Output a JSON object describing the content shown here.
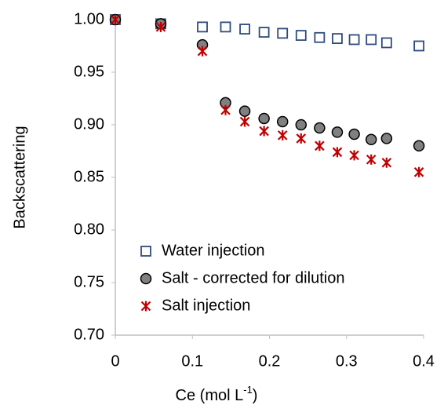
{
  "chart_data": {
    "type": "scatter",
    "xlabel": {
      "text": "Ce (mol L",
      "sup": "-1",
      "end": ")"
    },
    "ylabel": "Backscattering",
    "x": [
      0,
      0.059,
      0.113,
      0.143,
      0.168,
      0.193,
      0.217,
      0.241,
      0.265,
      0.288,
      0.31,
      0.332,
      0.352,
      0.394
    ],
    "series": [
      {
        "name": "Water injection",
        "color": "#2f4b7c",
        "marker": "square",
        "values": [
          1.0,
          0.996,
          0.993,
          0.993,
          0.991,
          0.988,
          0.987,
          0.985,
          0.983,
          0.982,
          0.981,
          0.981,
          0.978,
          0.975
        ]
      },
      {
        "name": "Salt - corrected for dilution",
        "color": "#808080",
        "marker": "circle",
        "values": [
          1.0,
          0.996,
          0.976,
          0.921,
          0.913,
          0.906,
          0.903,
          0.9,
          0.897,
          0.893,
          0.891,
          0.886,
          0.887,
          0.88
        ]
      },
      {
        "name": "Salt injection",
        "color": "#c00000",
        "marker": "star",
        "values": [
          1.0,
          0.993,
          0.97,
          0.914,
          0.903,
          0.894,
          0.89,
          0.887,
          0.88,
          0.874,
          0.871,
          0.867,
          0.864,
          0.855
        ]
      }
    ],
    "xlim": [
      0,
      0.4
    ],
    "xticks": [
      0,
      0.1,
      0.2,
      0.3,
      0.4
    ],
    "ylim": [
      0.7,
      1.0
    ],
    "yticks": [
      {
        "value": 0.7,
        "label": "0.70"
      },
      {
        "value": 0.75,
        "label": "0.75"
      },
      {
        "value": 0.8,
        "label": "0.80"
      },
      {
        "value": 0.85,
        "label": "0.85"
      },
      {
        "value": 0.9,
        "label": "0.90"
      },
      {
        "value": 0.95,
        "label": "0.95"
      },
      {
        "value": 1.0,
        "label": "1.00"
      }
    ],
    "grid": false,
    "legend": "lower-left"
  }
}
